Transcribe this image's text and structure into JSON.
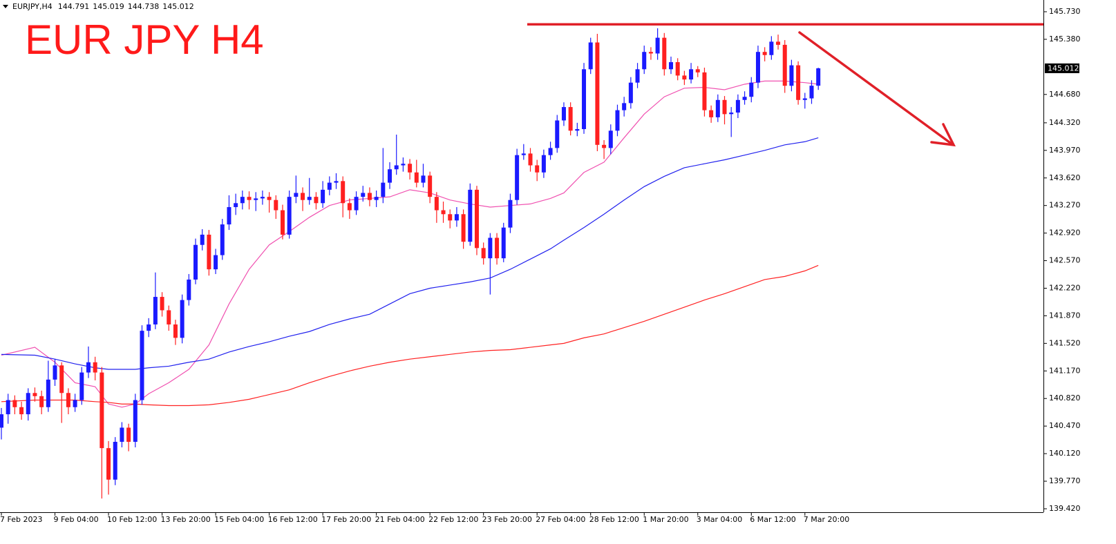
{
  "chart_data": {
    "type": "candlestick",
    "symbol": "EURJPY,H4",
    "title": "EUR JPY H4",
    "up_color": "#1a1aff",
    "down_color": "#ff2020",
    "ylim": [
      139.376,
      145.879
    ],
    "yticks": [
      {
        "value": 145.73,
        "label": "145.730"
      },
      {
        "value": 145.38,
        "label": "145.380"
      },
      {
        "value": 144.68,
        "label": "144.680"
      },
      {
        "value": 144.32,
        "label": "144.320"
      },
      {
        "value": 143.97,
        "label": "143.970"
      },
      {
        "value": 143.62,
        "label": "143.620"
      },
      {
        "value": 143.27,
        "label": "143.270"
      },
      {
        "value": 142.92,
        "label": "142.920"
      },
      {
        "value": 142.57,
        "label": "142.570"
      },
      {
        "value": 142.22,
        "label": "142.220"
      },
      {
        "value": 141.87,
        "label": "141.870"
      },
      {
        "value": 141.52,
        "label": "141.520"
      },
      {
        "value": 141.17,
        "label": "141.170"
      },
      {
        "value": 140.82,
        "label": "140.820"
      },
      {
        "value": 140.47,
        "label": "140.470"
      },
      {
        "value": 140.12,
        "label": "140.120"
      },
      {
        "value": 139.77,
        "label": "139.770"
      },
      {
        "value": 139.42,
        "label": "139.420"
      }
    ],
    "categories": [
      "7 Feb 2023",
      null,
      null,
      null,
      null,
      null,
      null,
      null,
      "9 Feb 04:00",
      null,
      null,
      null,
      null,
      null,
      null,
      null,
      "10 Feb 12:00",
      null,
      null,
      null,
      null,
      null,
      null,
      null,
      "13 Feb 20:00",
      null,
      null,
      null,
      null,
      null,
      null,
      null,
      "15 Feb 04:00",
      null,
      null,
      null,
      null,
      null,
      null,
      null,
      "16 Feb 12:00",
      null,
      null,
      null,
      null,
      null,
      null,
      null,
      "17 Feb 20:00",
      null,
      null,
      null,
      null,
      null,
      null,
      null,
      "21 Feb 04:00",
      null,
      null,
      null,
      null,
      null,
      null,
      null,
      "22 Feb 12:00",
      null,
      null,
      null,
      null,
      null,
      null,
      null,
      "23 Feb 20:00",
      null,
      null,
      null,
      null,
      null,
      null,
      null,
      "27 Feb 04:00",
      null,
      null,
      null,
      null,
      null,
      null,
      null,
      "28 Feb 12:00",
      null,
      null,
      null,
      null,
      null,
      null,
      null,
      "1 Mar 20:00",
      null,
      null,
      null,
      null,
      null,
      null,
      null,
      "3 Mar 04:00",
      null,
      null,
      null,
      null,
      null,
      null,
      null,
      "6 Mar 12:00",
      null,
      null,
      null,
      null,
      null,
      null,
      null,
      "7 Mar 20:00",
      null,
      null
    ],
    "candles": [
      [
        140.45,
        140.7,
        140.3,
        140.62
      ],
      [
        140.62,
        140.88,
        140.5,
        140.8
      ],
      [
        140.8,
        140.86,
        140.62,
        140.71
      ],
      [
        140.71,
        140.78,
        140.55,
        140.62
      ],
      [
        140.62,
        140.95,
        140.54,
        140.89
      ],
      [
        140.89,
        140.96,
        140.78,
        140.85
      ],
      [
        140.85,
        140.92,
        140.62,
        140.71
      ],
      [
        140.71,
        141.3,
        140.65,
        141.06
      ],
      [
        141.06,
        141.32,
        140.98,
        141.24
      ],
      [
        141.24,
        141.28,
        140.51,
        140.89
      ],
      [
        140.89,
        140.95,
        140.62,
        140.71
      ],
      [
        140.71,
        140.88,
        140.65,
        140.8
      ],
      [
        140.8,
        141.22,
        140.74,
        141.15
      ],
      [
        141.15,
        141.48,
        141.08,
        141.28
      ],
      [
        141.28,
        141.35,
        141.05,
        141.15
      ],
      [
        141.15,
        141.22,
        139.55,
        140.19
      ],
      [
        140.19,
        140.28,
        139.6,
        139.79
      ],
      [
        139.79,
        140.33,
        139.72,
        140.27
      ],
      [
        140.27,
        140.52,
        140.2,
        140.45
      ],
      [
        140.45,
        140.5,
        140.15,
        140.27
      ],
      [
        140.27,
        140.88,
        140.2,
        140.8
      ],
      [
        140.8,
        141.75,
        140.74,
        141.68
      ],
      [
        141.68,
        141.84,
        141.6,
        141.76
      ],
      [
        141.76,
        142.42,
        141.7,
        142.11
      ],
      [
        142.11,
        142.17,
        141.86,
        141.94
      ],
      [
        141.94,
        142.0,
        141.68,
        141.76
      ],
      [
        141.76,
        141.82,
        141.5,
        141.59
      ],
      [
        141.59,
        142.14,
        141.52,
        142.07
      ],
      [
        142.07,
        142.4,
        142.0,
        142.33
      ],
      [
        142.33,
        142.85,
        142.27,
        142.77
      ],
      [
        142.77,
        142.97,
        142.7,
        142.9
      ],
      [
        142.9,
        142.96,
        142.38,
        142.46
      ],
      [
        142.46,
        142.72,
        142.4,
        142.64
      ],
      [
        142.64,
        143.1,
        142.58,
        143.03
      ],
      [
        143.03,
        143.4,
        142.96,
        143.25
      ],
      [
        143.25,
        143.42,
        143.15,
        143.3
      ],
      [
        143.3,
        143.46,
        143.22,
        143.38
      ],
      [
        143.38,
        143.45,
        143.22,
        143.34
      ],
      [
        143.34,
        143.44,
        143.2,
        143.36
      ],
      [
        143.36,
        143.46,
        143.28,
        143.38
      ],
      [
        143.38,
        143.44,
        143.18,
        143.34
      ],
      [
        143.34,
        143.4,
        143.1,
        143.21
      ],
      [
        143.21,
        143.28,
        142.84,
        142.9
      ],
      [
        142.9,
        143.46,
        142.85,
        143.38
      ],
      [
        143.38,
        143.65,
        143.3,
        143.43
      ],
      [
        143.43,
        143.5,
        143.2,
        143.34
      ],
      [
        143.34,
        143.62,
        143.28,
        143.38
      ],
      [
        143.38,
        143.44,
        143.22,
        143.3
      ],
      [
        143.3,
        143.58,
        143.24,
        143.47
      ],
      [
        143.47,
        143.64,
        143.4,
        143.56
      ],
      [
        143.56,
        143.68,
        143.48,
        143.58
      ],
      [
        143.58,
        143.64,
        143.12,
        143.3
      ],
      [
        143.3,
        143.36,
        143.1,
        143.21
      ],
      [
        143.21,
        143.45,
        143.15,
        143.38
      ],
      [
        143.38,
        143.52,
        143.32,
        143.43
      ],
      [
        143.43,
        143.5,
        143.26,
        143.34
      ],
      [
        143.34,
        143.46,
        143.25,
        143.38
      ],
      [
        143.38,
        144.0,
        143.3,
        143.56
      ],
      [
        143.56,
        143.82,
        143.48,
        143.73
      ],
      [
        143.73,
        144.17,
        143.66,
        143.78
      ],
      [
        143.78,
        143.88,
        143.7,
        143.8
      ],
      [
        143.8,
        143.86,
        143.6,
        143.69
      ],
      [
        143.69,
        143.85,
        143.5,
        143.56
      ],
      [
        143.56,
        143.8,
        143.5,
        143.65
      ],
      [
        143.65,
        143.7,
        143.3,
        143.38
      ],
      [
        143.38,
        143.44,
        143.05,
        143.21
      ],
      [
        143.21,
        143.32,
        143.05,
        143.16
      ],
      [
        143.16,
        143.22,
        142.98,
        143.08
      ],
      [
        143.08,
        143.25,
        143.0,
        143.16
      ],
      [
        143.16,
        143.22,
        142.72,
        142.81
      ],
      [
        142.81,
        143.55,
        142.76,
        143.47
      ],
      [
        143.47,
        143.52,
        142.64,
        142.73
      ],
      [
        142.73,
        142.8,
        142.52,
        142.6
      ],
      [
        142.6,
        142.92,
        142.14,
        142.86
      ],
      [
        142.86,
        142.92,
        142.52,
        142.6
      ],
      [
        142.6,
        143.05,
        142.55,
        142.99
      ],
      [
        142.99,
        143.42,
        142.92,
        143.34
      ],
      [
        143.34,
        143.99,
        143.28,
        143.91
      ],
      [
        143.91,
        144.05,
        143.85,
        143.93
      ],
      [
        143.93,
        144.0,
        143.7,
        143.78
      ],
      [
        143.78,
        143.85,
        143.58,
        143.69
      ],
      [
        143.69,
        143.98,
        143.62,
        143.91
      ],
      [
        143.91,
        144.08,
        143.85,
        144.0
      ],
      [
        144.0,
        144.42,
        143.94,
        144.35
      ],
      [
        144.35,
        144.58,
        144.28,
        144.52
      ],
      [
        144.52,
        144.58,
        144.16,
        144.22
      ],
      [
        144.22,
        144.32,
        144.15,
        144.24
      ],
      [
        144.24,
        145.08,
        144.18,
        145.0
      ],
      [
        145.0,
        145.4,
        144.94,
        145.34
      ],
      [
        145.34,
        145.45,
        143.96,
        144.04
      ],
      [
        144.04,
        144.1,
        143.86,
        144.0
      ],
      [
        144.0,
        144.3,
        143.92,
        144.22
      ],
      [
        144.22,
        144.55,
        144.15,
        144.48
      ],
      [
        144.48,
        144.65,
        144.4,
        144.57
      ],
      [
        144.57,
        144.9,
        144.5,
        144.83
      ],
      [
        144.83,
        145.08,
        144.76,
        145.0
      ],
      [
        145.0,
        145.3,
        144.94,
        145.22
      ],
      [
        145.22,
        145.28,
        145.12,
        145.2
      ],
      [
        145.2,
        145.52,
        145.12,
        145.4
      ],
      [
        145.4,
        145.46,
        144.92,
        145.0
      ],
      [
        145.0,
        145.16,
        144.94,
        145.09
      ],
      [
        145.09,
        145.14,
        144.86,
        144.92
      ],
      [
        144.92,
        144.98,
        144.8,
        144.87
      ],
      [
        144.87,
        145.08,
        144.82,
        145.0
      ],
      [
        145.0,
        145.04,
        144.9,
        144.96
      ],
      [
        144.96,
        145.02,
        144.4,
        144.48
      ],
      [
        144.48,
        144.54,
        144.32,
        144.39
      ],
      [
        144.39,
        144.68,
        144.33,
        144.61
      ],
      [
        144.61,
        144.66,
        144.3,
        144.43
      ],
      [
        144.43,
        144.52,
        144.14,
        144.45
      ],
      [
        144.45,
        144.68,
        144.38,
        144.61
      ],
      [
        144.61,
        144.72,
        144.55,
        144.65
      ],
      [
        144.65,
        144.9,
        144.58,
        144.83
      ],
      [
        144.83,
        145.3,
        144.76,
        145.22
      ],
      [
        145.22,
        145.28,
        145.1,
        145.18
      ],
      [
        145.18,
        145.42,
        145.12,
        145.35
      ],
      [
        145.35,
        145.44,
        145.25,
        145.31
      ],
      [
        145.31,
        145.37,
        144.7,
        144.79
      ],
      [
        144.79,
        145.12,
        144.72,
        145.05
      ],
      [
        145.05,
        145.1,
        144.55,
        144.61
      ],
      [
        144.61,
        144.7,
        144.5,
        144.63
      ],
      [
        144.63,
        144.86,
        144.56,
        144.791
      ],
      [
        144.791,
        145.019,
        144.738,
        145.012
      ]
    ],
    "series": [
      {
        "color": "#f050b0",
        "x": [
          0,
          5,
          8,
          11,
          14,
          16,
          18,
          20,
          22,
          25,
          28,
          31,
          34,
          37,
          40,
          43,
          46,
          49,
          52,
          55,
          58,
          61,
          64,
          67,
          70,
          73,
          76,
          79,
          82,
          84,
          87,
          90,
          93,
          96,
          99,
          102,
          105,
          108,
          111,
          114,
          117,
          120,
          122
        ],
        "values": [
          141.37,
          141.47,
          141.28,
          141.02,
          140.97,
          140.75,
          140.71,
          140.75,
          140.88,
          141.02,
          141.19,
          141.5,
          142.02,
          142.46,
          142.77,
          142.94,
          143.12,
          143.27,
          143.34,
          143.36,
          143.38,
          143.47,
          143.43,
          143.34,
          143.29,
          143.25,
          143.27,
          143.29,
          143.36,
          143.43,
          143.69,
          143.82,
          144.13,
          144.43,
          144.65,
          144.76,
          144.77,
          144.74,
          144.81,
          144.85,
          144.85,
          144.83,
          144.81
        ]
      },
      {
        "color": "#2020ee",
        "x": [
          0,
          5,
          8,
          11,
          14,
          16,
          18,
          20,
          22,
          25,
          28,
          31,
          34,
          37,
          40,
          43,
          46,
          49,
          52,
          55,
          58,
          61,
          64,
          67,
          70,
          73,
          76,
          79,
          82,
          84,
          87,
          90,
          93,
          96,
          99,
          102,
          105,
          108,
          111,
          114,
          117,
          120,
          122
        ],
        "values": [
          141.38,
          141.37,
          141.32,
          141.26,
          141.21,
          141.19,
          141.19,
          141.19,
          141.21,
          141.23,
          141.28,
          141.32,
          141.41,
          141.48,
          141.54,
          141.61,
          141.67,
          141.76,
          141.83,
          141.89,
          142.02,
          142.15,
          142.22,
          142.26,
          142.3,
          142.35,
          142.46,
          142.59,
          142.72,
          142.83,
          142.99,
          143.16,
          143.34,
          143.51,
          143.64,
          143.75,
          143.8,
          143.85,
          143.91,
          143.97,
          144.04,
          144.08,
          144.13
        ]
      },
      {
        "color": "#ff2020",
        "x": [
          0,
          5,
          8,
          11,
          14,
          16,
          18,
          20,
          22,
          25,
          28,
          31,
          34,
          37,
          40,
          43,
          46,
          49,
          52,
          55,
          58,
          61,
          64,
          67,
          70,
          73,
          76,
          79,
          82,
          84,
          87,
          90,
          93,
          96,
          99,
          102,
          105,
          108,
          111,
          114,
          117,
          120,
          122
        ],
        "values": [
          140.78,
          140.8,
          140.8,
          140.8,
          140.78,
          140.77,
          140.75,
          140.75,
          140.74,
          140.73,
          140.73,
          140.74,
          140.77,
          140.81,
          140.87,
          140.93,
          141.02,
          141.1,
          141.17,
          141.23,
          141.28,
          141.32,
          141.35,
          141.38,
          141.41,
          141.43,
          141.44,
          141.47,
          141.5,
          141.52,
          141.59,
          141.64,
          141.72,
          141.8,
          141.89,
          141.98,
          142.07,
          142.15,
          142.24,
          142.33,
          142.37,
          142.44,
          142.51
        ]
      }
    ],
    "resistance_level": 145.57,
    "resistance_color": "#e02028"
  }
}
